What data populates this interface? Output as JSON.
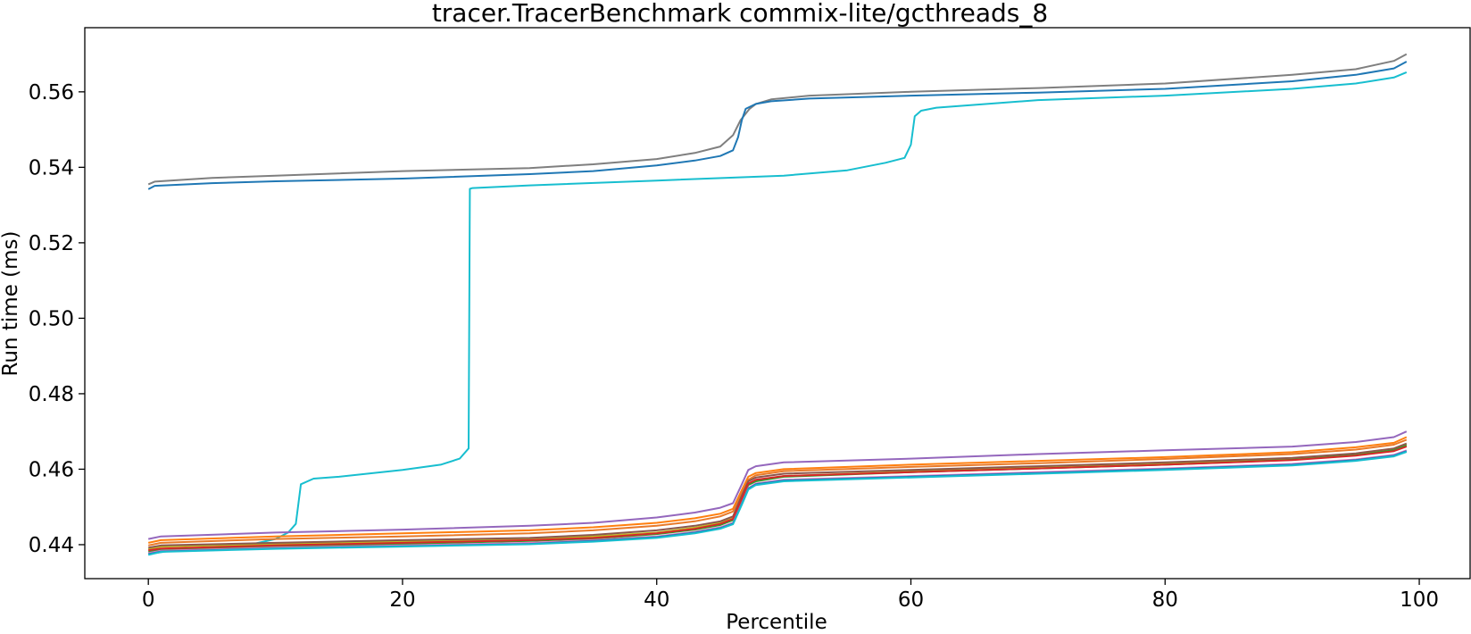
{
  "chart_data": {
    "type": "line",
    "title": "tracer.TracerBenchmark commix-lite/gcthreads_8",
    "xlabel": "Percentile",
    "ylabel": "Run time (ms)",
    "xlim": [
      -5,
      104
    ],
    "ylim": [
      0.431,
      0.577
    ],
    "xticks": [
      0,
      20,
      40,
      60,
      80,
      100
    ],
    "yticks": [
      0.44,
      0.46,
      0.48,
      0.5,
      0.52,
      0.54,
      0.56
    ],
    "xtick_labels": [
      "0",
      "20",
      "40",
      "60",
      "80",
      "100"
    ],
    "ytick_labels": [
      "0.44",
      "0.46",
      "0.48",
      "0.50",
      "0.52",
      "0.54",
      "0.56"
    ],
    "grid": false,
    "legend": "none",
    "series": [
      {
        "color": "#7f7f7f",
        "x": [
          0,
          0.5,
          5,
          10,
          20,
          30,
          35,
          40,
          43,
          45,
          46,
          46.6,
          47.3,
          47.8,
          49,
          52,
          60,
          70,
          80,
          90,
          95,
          98,
          99
        ],
        "y": [
          0.5355,
          0.5362,
          0.5372,
          0.5378,
          0.539,
          0.5398,
          0.5408,
          0.5422,
          0.5438,
          0.5455,
          0.5485,
          0.5525,
          0.5555,
          0.5568,
          0.558,
          0.559,
          0.56,
          0.561,
          0.5622,
          0.5645,
          0.566,
          0.5682,
          0.57
        ]
      },
      {
        "color": "#1f77b4",
        "x": [
          0,
          0.5,
          5,
          10,
          20,
          30,
          35,
          40,
          43,
          45,
          46,
          46.4,
          46.7,
          47,
          47.8,
          49,
          52,
          60,
          70,
          80,
          90,
          95,
          98,
          99
        ],
        "y": [
          0.5342,
          0.5351,
          0.5358,
          0.5363,
          0.537,
          0.5382,
          0.539,
          0.5405,
          0.5418,
          0.543,
          0.5445,
          0.548,
          0.5525,
          0.5555,
          0.5568,
          0.5575,
          0.5582,
          0.559,
          0.5598,
          0.5608,
          0.5628,
          0.5645,
          0.5662,
          0.568
        ]
      },
      {
        "color": "#17becf",
        "x": [
          0,
          2,
          5,
          8,
          10,
          11,
          11.6,
          12,
          13,
          15,
          20,
          23,
          24.5,
          25.2,
          25.3,
          25.5,
          30,
          40,
          50,
          55,
          58,
          59.5,
          60,
          60.3,
          60.8,
          62,
          70,
          80,
          90,
          95,
          98,
          99
        ],
        "y": [
          0.4375,
          0.4385,
          0.4392,
          0.44,
          0.4415,
          0.4432,
          0.4455,
          0.456,
          0.4575,
          0.458,
          0.4598,
          0.4612,
          0.4628,
          0.4655,
          0.5343,
          0.5345,
          0.5352,
          0.5365,
          0.5378,
          0.5392,
          0.5412,
          0.5425,
          0.546,
          0.5535,
          0.555,
          0.5558,
          0.5578,
          0.559,
          0.5608,
          0.5622,
          0.5638,
          0.5652
        ]
      },
      {
        "color": "#9467bd",
        "x": [
          0,
          1,
          10,
          20,
          30,
          35,
          40,
          43,
          45,
          46,
          46.7,
          47.2,
          47.8,
          50,
          60,
          70,
          80,
          90,
          95,
          98,
          99
        ],
        "y": [
          0.4415,
          0.4422,
          0.4432,
          0.444,
          0.445,
          0.4458,
          0.4472,
          0.4485,
          0.4498,
          0.451,
          0.456,
          0.4598,
          0.4608,
          0.4618,
          0.4628,
          0.464,
          0.465,
          0.466,
          0.4672,
          0.4685,
          0.47
        ]
      },
      {
        "color": "#ff7f0e",
        "x": [
          0,
          1,
          10,
          20,
          30,
          35,
          40,
          43,
          45,
          46,
          46.7,
          47.2,
          47.8,
          50,
          60,
          70,
          80,
          90,
          95,
          98,
          99
        ],
        "y": [
          0.4405,
          0.4412,
          0.4422,
          0.443,
          0.4438,
          0.4446,
          0.4458,
          0.447,
          0.4482,
          0.4495,
          0.4545,
          0.458,
          0.459,
          0.46,
          0.4612,
          0.4622,
          0.4632,
          0.4645,
          0.4658,
          0.467,
          0.4685
        ]
      },
      {
        "color": "#e87a2a",
        "x": [
          0,
          1,
          10,
          20,
          30,
          35,
          40,
          43,
          45,
          46,
          46.7,
          47.2,
          47.8,
          50,
          60,
          70,
          80,
          90,
          95,
          98,
          99
        ],
        "y": [
          0.4398,
          0.4405,
          0.4415,
          0.4422,
          0.443,
          0.4438,
          0.445,
          0.4462,
          0.4475,
          0.4488,
          0.4538,
          0.4572,
          0.4584,
          0.4595,
          0.4606,
          0.4616,
          0.4627,
          0.464,
          0.4652,
          0.4665,
          0.4678
        ]
      },
      {
        "color": "#bcbd22",
        "x": [
          0,
          1,
          10,
          20,
          30,
          35,
          40,
          43,
          45,
          46,
          46.7,
          47.2,
          47.8,
          50,
          60,
          70,
          80,
          90,
          95,
          98,
          99
        ],
        "y": [
          0.4388,
          0.4395,
          0.4402,
          0.4408,
          0.4415,
          0.4422,
          0.4432,
          0.4445,
          0.4458,
          0.447,
          0.4525,
          0.456,
          0.457,
          0.4582,
          0.4594,
          0.4605,
          0.4615,
          0.4628,
          0.464,
          0.4652,
          0.4665
        ]
      },
      {
        "color": "#8c564b",
        "x": [
          0,
          1,
          10,
          20,
          30,
          35,
          40,
          43,
          45,
          46,
          46.7,
          47.2,
          47.8,
          50,
          60,
          70,
          80,
          90,
          95,
          98,
          99
        ],
        "y": [
          0.4392,
          0.4398,
          0.4405,
          0.4412,
          0.4418,
          0.4426,
          0.4438,
          0.445,
          0.4462,
          0.4475,
          0.453,
          0.4568,
          0.4578,
          0.4588,
          0.4598,
          0.4608,
          0.4618,
          0.463,
          0.4642,
          0.4655,
          0.4668
        ]
      },
      {
        "color": "#2ca02c",
        "x": [
          0,
          1,
          10,
          20,
          30,
          35,
          40,
          43,
          45,
          46,
          46.7,
          47.2,
          47.8,
          50,
          60,
          70,
          80,
          90,
          95,
          98,
          99
        ],
        "y": [
          0.4382,
          0.4388,
          0.4396,
          0.4402,
          0.441,
          0.4416,
          0.4428,
          0.444,
          0.4452,
          0.4465,
          0.452,
          0.4558,
          0.4568,
          0.458,
          0.4592,
          0.4602,
          0.4612,
          0.4625,
          0.4637,
          0.465,
          0.4663
        ]
      },
      {
        "color": "#d62728",
        "x": [
          0,
          1,
          10,
          20,
          30,
          35,
          40,
          43,
          45,
          46,
          46.7,
          47.2,
          47.8,
          50,
          60,
          70,
          80,
          90,
          95,
          98,
          99
        ],
        "y": [
          0.4385,
          0.439,
          0.4398,
          0.4405,
          0.4412,
          0.4418,
          0.443,
          0.4442,
          0.4455,
          0.4468,
          0.4522,
          0.4562,
          0.4572,
          0.4582,
          0.4592,
          0.4602,
          0.4612,
          0.4624,
          0.4636,
          0.4648,
          0.466
        ]
      },
      {
        "color": "#e377c2",
        "x": [
          0,
          1,
          10,
          20,
          30,
          35,
          40,
          43,
          45,
          46,
          46.7,
          47.2,
          47.8,
          50,
          60,
          70,
          80,
          90,
          95,
          98,
          99
        ],
        "y": [
          0.4378,
          0.4384,
          0.4392,
          0.4398,
          0.4405,
          0.4412,
          0.4422,
          0.4434,
          0.4446,
          0.4458,
          0.451,
          0.455,
          0.4562,
          0.4572,
          0.4582,
          0.4592,
          0.4602,
          0.4614,
          0.4626,
          0.4638,
          0.465
        ]
      },
      {
        "color": "#1f77b4",
        "x": [
          0,
          1,
          10,
          20,
          30,
          35,
          40,
          43,
          45,
          46,
          46.7,
          47.2,
          47.8,
          50,
          60,
          70,
          80,
          90,
          95,
          98,
          99
        ],
        "y": [
          0.4375,
          0.4382,
          0.439,
          0.4396,
          0.4402,
          0.441,
          0.442,
          0.4432,
          0.4444,
          0.4456,
          0.4508,
          0.4548,
          0.456,
          0.457,
          0.458,
          0.459,
          0.46,
          0.4612,
          0.4624,
          0.4636,
          0.4648
        ]
      },
      {
        "color": "#17becf",
        "x": [
          0,
          1,
          10,
          20,
          30,
          35,
          40,
          43,
          45,
          46,
          46.7,
          47.2,
          47.8,
          50,
          60,
          70,
          80,
          90,
          95,
          98,
          99
        ],
        "y": [
          0.4373,
          0.4381,
          0.4389,
          0.4395,
          0.4401,
          0.4408,
          0.4418,
          0.443,
          0.4442,
          0.4454,
          0.4506,
          0.4546,
          0.4558,
          0.4568,
          0.4578,
          0.4588,
          0.4598,
          0.461,
          0.4622,
          0.4634,
          0.4646
        ]
      }
    ]
  }
}
